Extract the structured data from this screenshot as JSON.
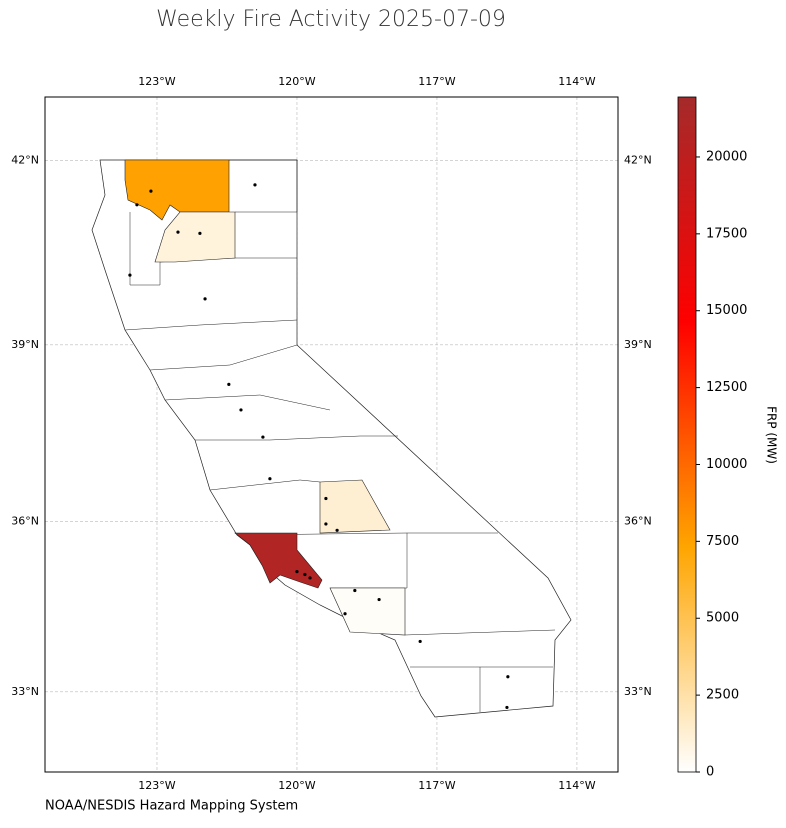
{
  "map": {
    "title": "Weekly Fire Activity 2025-07-09",
    "source": "NOAA/NESDIS Hazard Mapping System",
    "xlim": [
      -125.4,
      -113.12
    ],
    "ylim": [
      31.55,
      43.0
    ],
    "xticks": [
      {
        "value": -123,
        "label": "123°W"
      },
      {
        "value": -120,
        "label": "120°W"
      },
      {
        "value": -117,
        "label": "117°W"
      },
      {
        "value": -114,
        "label": "114°W"
      }
    ],
    "yticks": [
      {
        "value": 33,
        "label": "33°N"
      },
      {
        "value": 36,
        "label": "36°N"
      },
      {
        "value": 39,
        "label": "39°N"
      },
      {
        "value": 42,
        "label": "42°N"
      }
    ],
    "grid": true,
    "colorbar": {
      "label": "FRP (MW)",
      "lim": [
        0,
        21950
      ],
      "ticks": [
        0,
        2500,
        5000,
        7500,
        10000,
        12500,
        15000,
        17500,
        20000
      ],
      "colormap": [
        "#ffffff",
        "#ffa500",
        "#ff0000",
        "#a52a2a"
      ]
    },
    "region_frp": [
      7500,
      1000,
      1300,
      21000,
      200
    ],
    "fires": {
      "lon": [
        -123.43,
        -123.13,
        -122.55,
        -122.08,
        -123.58,
        -121.97,
        -121.46,
        -121.2,
        -120.73,
        -120.58,
        -119.38,
        -119.38,
        -119.14,
        -120.0,
        -119.83,
        -119.72,
        -118.76,
        -118.24,
        -118.97,
        -117.36,
        -115.48,
        -115.5,
        -120.9
      ],
      "lat": [
        41.29,
        41.51,
        40.85,
        40.83,
        40.15,
        39.76,
        38.34,
        37.91,
        37.45,
        36.74,
        36.4,
        35.96,
        35.85,
        35.13,
        35.08,
        35.02,
        34.8,
        34.64,
        34.39,
        33.9,
        33.27,
        32.72,
        41.61
      ]
    }
  }
}
